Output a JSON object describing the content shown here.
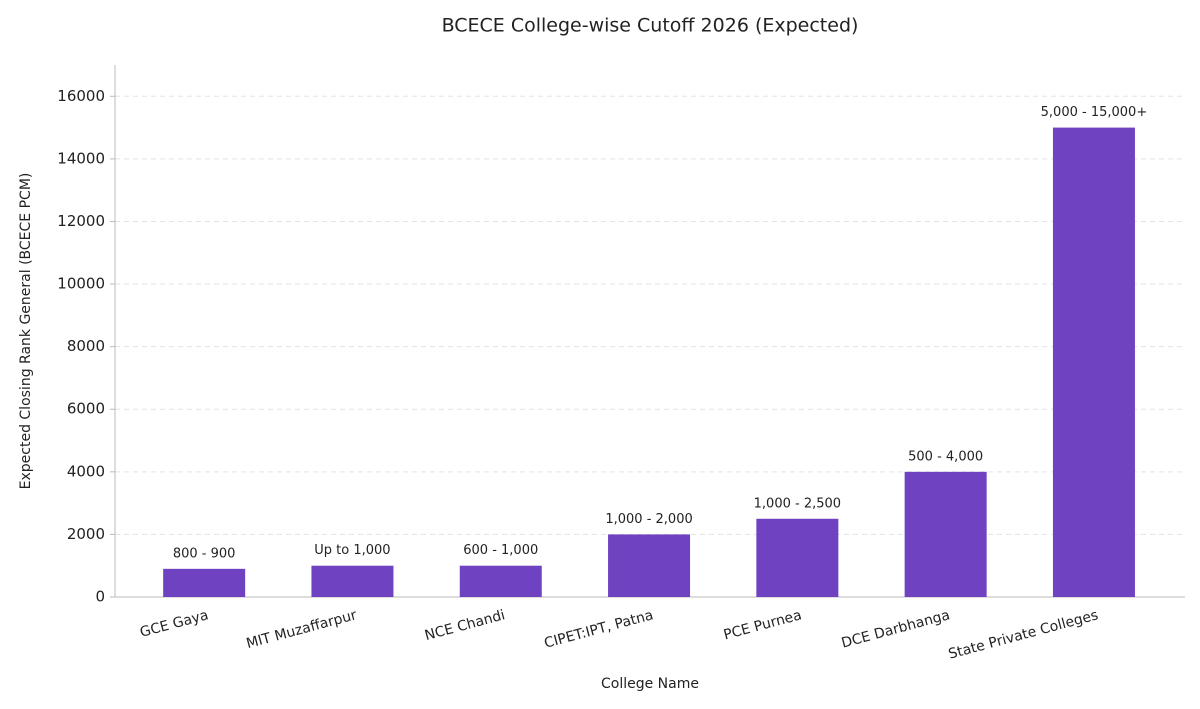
{
  "chart_data": {
    "type": "bar",
    "title": "BCECE College-wise Cutoff 2026 (Expected)",
    "x_label": "College Name",
    "y_label": "Expected Closing Rank General (BCECE PCM)",
    "categories": [
      "GCE Gaya",
      "MIT Muzaffarpur",
      "NCE Chandi",
      "CIPET:IPT, Patna",
      "PCE Purnea",
      "DCE Darbhanga",
      "State Private Colleges"
    ],
    "values": [
      900,
      1000,
      1000,
      2000,
      2500,
      4000,
      15000
    ],
    "value_labels": [
      "800 - 900",
      "Up to 1,000",
      "600 - 1,000",
      "1,000 - 2,000",
      "1,000 - 2,500",
      "500 - 4,000",
      "5,000 - 15,000+"
    ],
    "color": "#6f42c1",
    "ylim": [
      0,
      17000
    ],
    "yticks": [
      0,
      2000,
      4000,
      6000,
      8000,
      10000,
      12000,
      14000,
      16000
    ],
    "grid": true
  }
}
